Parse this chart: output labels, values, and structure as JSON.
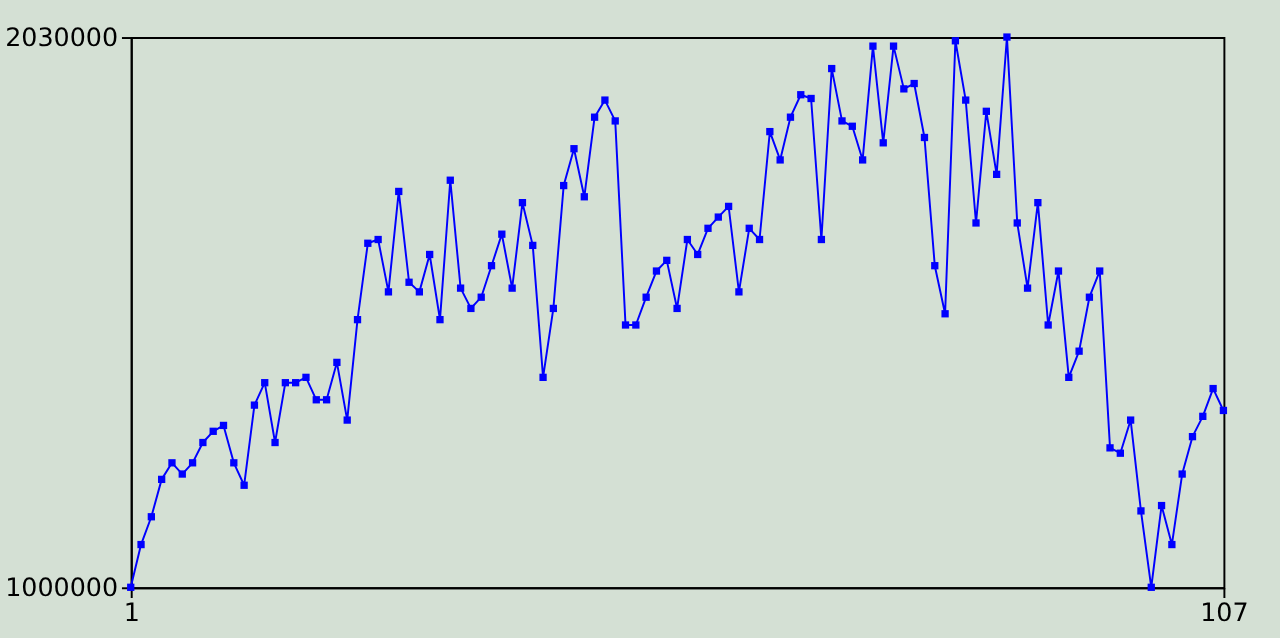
{
  "chart_data": {
    "type": "line",
    "x": [
      1,
      2,
      3,
      4,
      5,
      6,
      7,
      8,
      9,
      10,
      11,
      12,
      13,
      14,
      15,
      16,
      17,
      18,
      19,
      20,
      21,
      22,
      23,
      24,
      25,
      26,
      27,
      28,
      29,
      30,
      31,
      32,
      33,
      34,
      35,
      36,
      37,
      38,
      39,
      40,
      41,
      42,
      43,
      44,
      45,
      46,
      47,
      48,
      49,
      50,
      51,
      52,
      53,
      54,
      55,
      56,
      57,
      58,
      59,
      60,
      61,
      62,
      63,
      64,
      65,
      66,
      67,
      68,
      69,
      70,
      71,
      72,
      73,
      74,
      75,
      76,
      77,
      78,
      79,
      80,
      81,
      82,
      83,
      84,
      85,
      86,
      87,
      88,
      89,
      90,
      91,
      92,
      93,
      94,
      95,
      96,
      97,
      98,
      99,
      100,
      101,
      102,
      103,
      104,
      105,
      106,
      107
    ],
    "series": [
      {
        "color": "#0000ff",
        "values": [
          1000000,
          1080000,
          1132000,
          1202000,
          1233000,
          1212000,
          1233000,
          1271000,
          1292000,
          1303000,
          1233000,
          1191000,
          1341000,
          1383000,
          1271000,
          1383000,
          1383000,
          1393000,
          1351000,
          1351000,
          1421000,
          1313000,
          1501000,
          1644000,
          1651000,
          1553000,
          1741000,
          1571000,
          1553000,
          1623000,
          1501000,
          1762000,
          1560000,
          1522000,
          1543000,
          1602000,
          1661000,
          1560000,
          1720000,
          1640000,
          1393000,
          1522000,
          1752000,
          1821000,
          1731000,
          1880000,
          1912000,
          1873000,
          1491000,
          1491000,
          1543000,
          1592000,
          1612000,
          1522000,
          1651000,
          1623000,
          1672000,
          1693000,
          1713000,
          1553000,
          1672000,
          1651000,
          1853000,
          1800000,
          1880000,
          1922000,
          1915000,
          1651000,
          1971000,
          1873000,
          1863000,
          1800000,
          2013000,
          1832000,
          2013000,
          1933000,
          1943000,
          1842000,
          1602000,
          1512000,
          2023000,
          1912000,
          1682000,
          1891000,
          1773000,
          2030000,
          1682000,
          1560000,
          1720000,
          1491000,
          1592000,
          1393000,
          1442000,
          1543000,
          1592000,
          1261000,
          1251000,
          1313000,
          1143000,
          1000000,
          1153000,
          1080000,
          1212000,
          1282000,
          1320000,
          1372000,
          1331000
        ]
      }
    ],
    "xlim": [
      1,
      107
    ],
    "xticks": [
      1,
      107
    ],
    "ylim": [
      1000000,
      2030000
    ],
    "yticks": [
      1000000,
      2030000
    ],
    "grid": false,
    "legend": false,
    "marker": "square",
    "line_style": "solid"
  }
}
